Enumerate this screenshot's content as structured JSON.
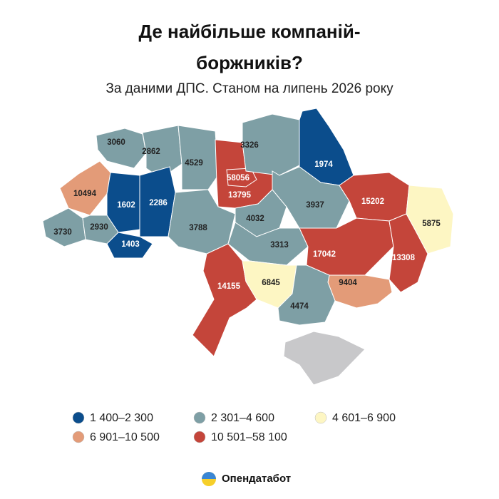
{
  "title": "Де найбільше компаній-боржників?",
  "subtitle": "За даними ДПС. Станом на липень 2026 року",
  "legend": [
    {
      "label": "1 400–2 300",
      "range": [
        1400,
        2300
      ],
      "color": "#0b4d8c"
    },
    {
      "label": "2 301–4 600",
      "range": [
        2301,
        4600
      ],
      "color": "#7e9fa5"
    },
    {
      "label": "4 601–6 900",
      "range": [
        4601,
        6900
      ],
      "color": "#fdf6c3"
    },
    {
      "label": "6 901–10 500",
      "range": [
        6901,
        10500
      ],
      "color": "#e39b78"
    },
    {
      "label": "10 501–58 100",
      "range": [
        10501,
        58100
      ],
      "color": "#c4453a"
    }
  ],
  "regions": [
    3060,
    2862,
    4529,
    13795,
    58056,
    3326,
    1974,
    10494,
    1602,
    2286,
    3730,
    2930,
    1403,
    3788,
    4032,
    3937,
    15202,
    5875,
    3313,
    17042,
    13308,
    14155,
    6845,
    9404,
    4474
  ],
  "brand": "Опендатабот"
}
